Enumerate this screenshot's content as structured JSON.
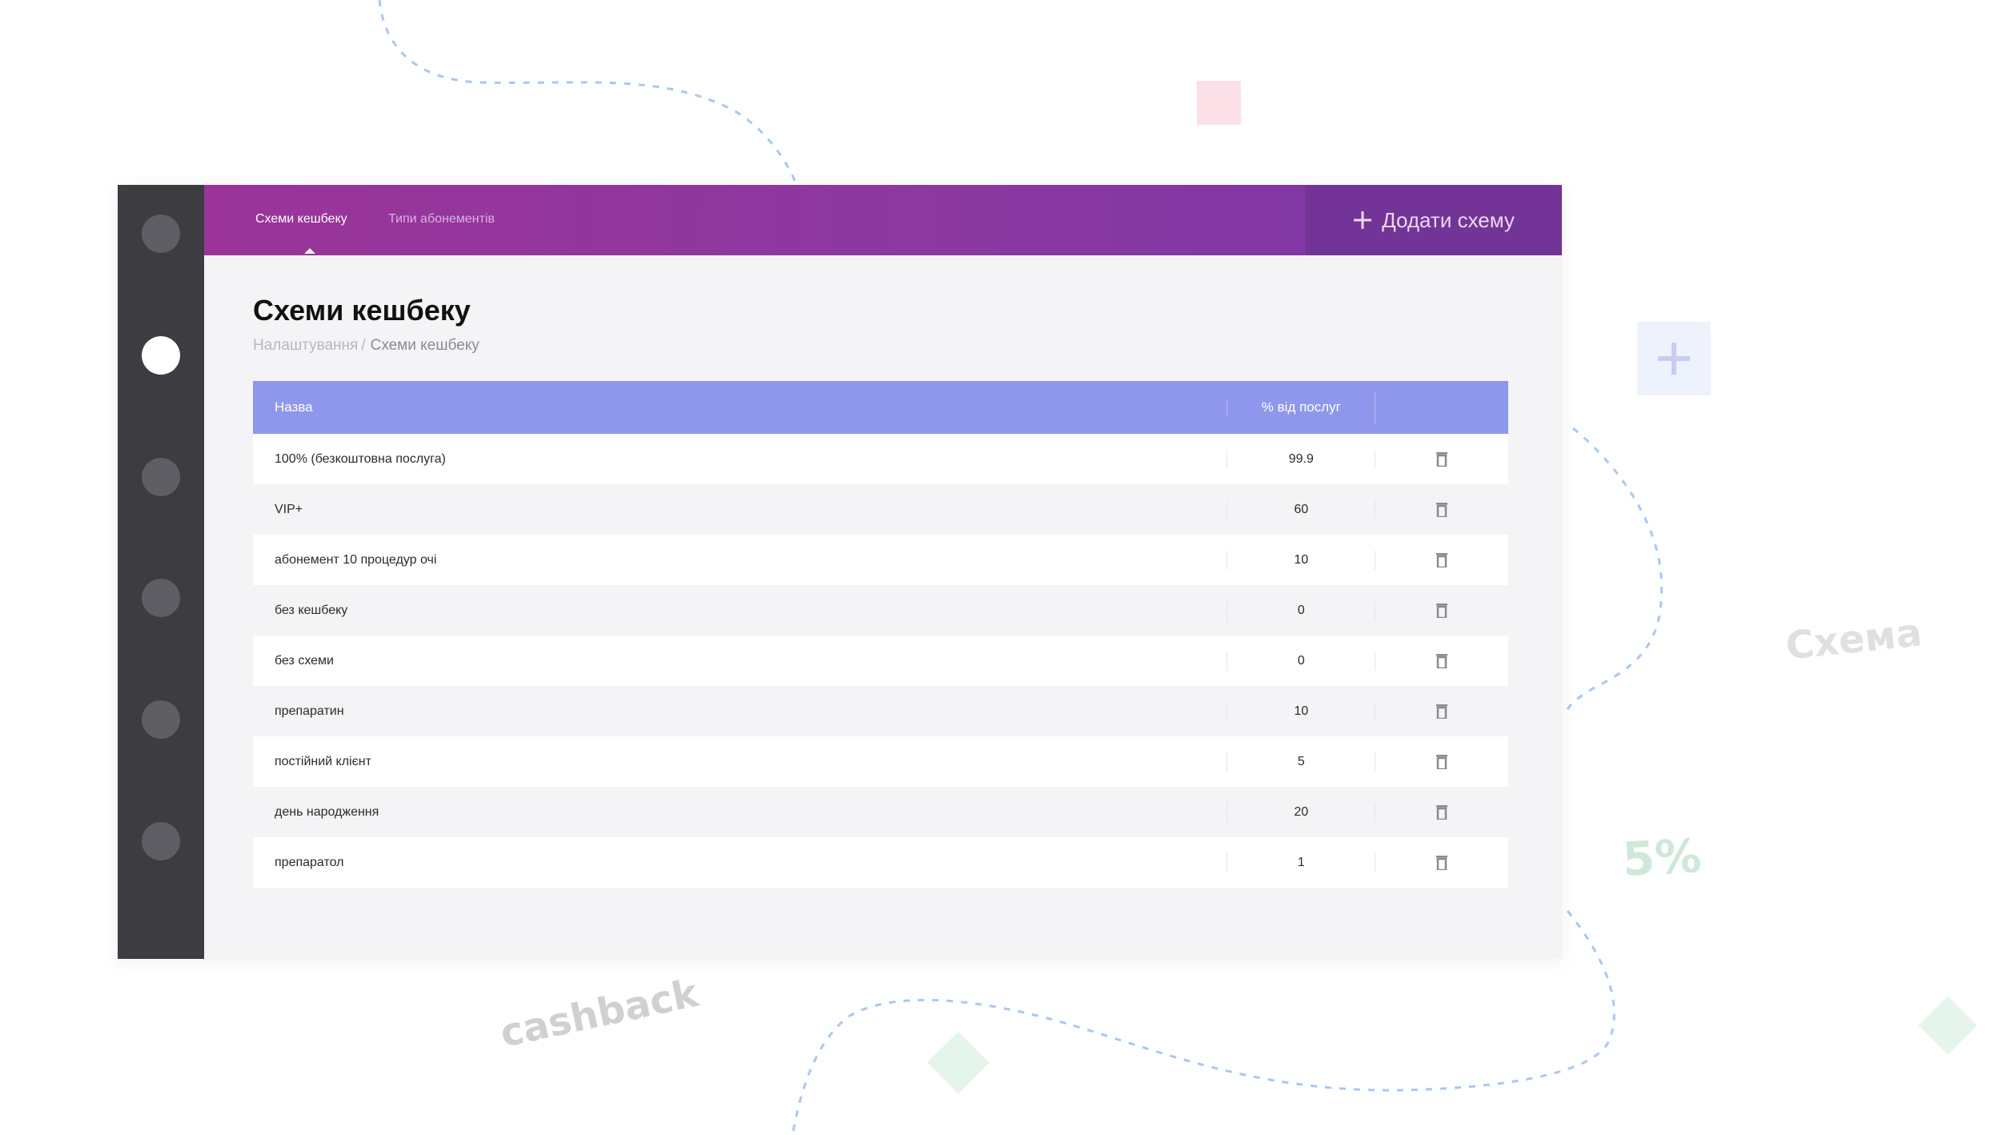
{
  "colors": {
    "sidebar": "#3d3c41",
    "topbar_start": "#9a3499",
    "topbar_end": "#7a35a6",
    "add_button_bg": "#733497",
    "table_header": "#8f97ec",
    "page_bg": "#f4f4f6"
  },
  "decorations": {
    "cashback": "cashback",
    "schema": "Схема",
    "percent": "5%"
  },
  "sidebar": {
    "items": [
      {
        "icon": "nav-circle-icon",
        "active": false
      },
      {
        "icon": "nav-circle-icon",
        "active": true
      },
      {
        "icon": "nav-circle-icon",
        "active": false
      },
      {
        "icon": "nav-circle-icon",
        "active": false
      },
      {
        "icon": "nav-circle-icon",
        "active": false
      },
      {
        "icon": "nav-circle-icon",
        "active": false
      }
    ]
  },
  "topbar": {
    "tabs": [
      {
        "label": "Схеми кешбеку",
        "active": true
      },
      {
        "label": "Типи абонементів",
        "active": false
      }
    ],
    "add_button": {
      "icon": "plus-icon",
      "label": "Додати схему"
    }
  },
  "page": {
    "title": "Схеми кешбеку",
    "breadcrumb": {
      "parent": "Налаштування",
      "separator": "/",
      "current": "Схеми кешбеку"
    }
  },
  "table": {
    "columns": {
      "name": "Назва",
      "percent": "% від послуг"
    },
    "rows": [
      {
        "name": "100% (безкоштовна послуга)",
        "percent": "99.9"
      },
      {
        "name": "VIP+",
        "percent": "60"
      },
      {
        "name": "абонемент 10 процедур очі",
        "percent": "10"
      },
      {
        "name": "без кешбеку",
        "percent": "0"
      },
      {
        "name": "без схеми",
        "percent": "0"
      },
      {
        "name": "препаратин",
        "percent": "10"
      },
      {
        "name": "постійний клієнт",
        "percent": "5"
      },
      {
        "name": "день народження",
        "percent": "20"
      },
      {
        "name": "препаратол",
        "percent": "1"
      }
    ]
  }
}
